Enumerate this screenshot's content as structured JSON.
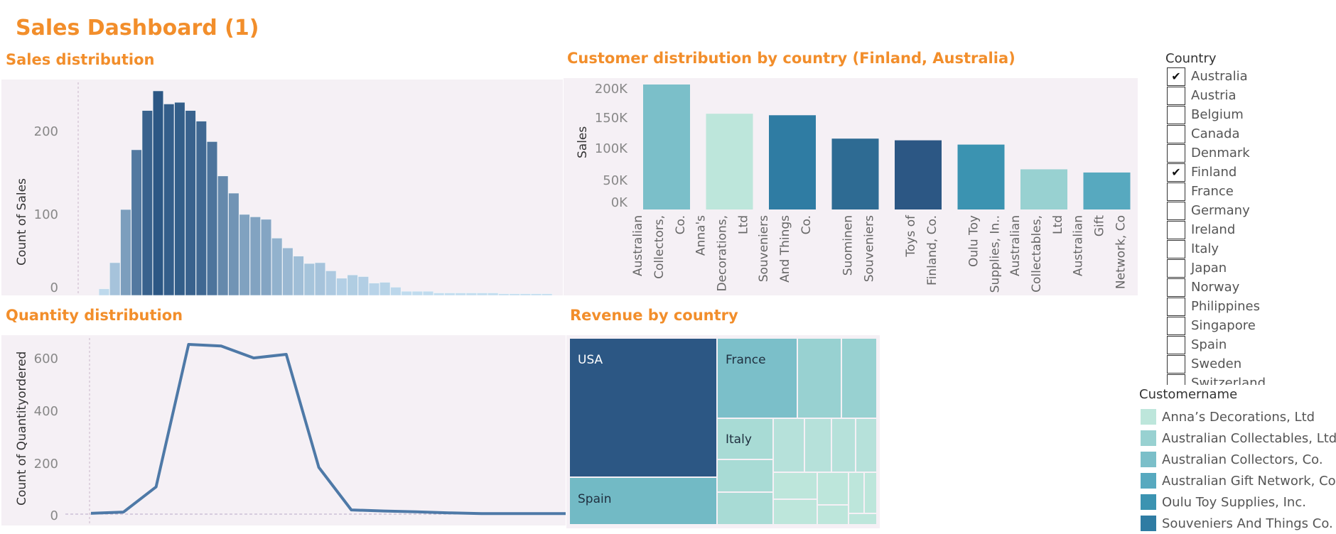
{
  "dashboard": {
    "title": "Sales Dashboard (1)"
  },
  "panels": {
    "sales_distribution": {
      "title": "Sales distribution",
      "ylabel": "Count of Sales",
      "yticks": [
        "200",
        "100",
        "0"
      ]
    },
    "customer_distribution": {
      "title": "Customer distribution by country (Finland, Australia)",
      "ylabel": "Sales",
      "yticks": [
        "200K",
        "150K",
        "100K",
        "50K",
        "0K"
      ]
    },
    "quantity_distribution": {
      "title": "Quantity distribution",
      "ylabel": "Count of Quantityordered",
      "yticks": [
        "600",
        "400",
        "200",
        "0"
      ]
    },
    "revenue_by_country": {
      "title": "Revenue by country",
      "labels": [
        "USA",
        "Spain",
        "France",
        "Italy"
      ]
    }
  },
  "chart_data": [
    {
      "type": "bar",
      "title": "Sales distribution",
      "ylabel": "Count of Sales",
      "ylim": [
        0,
        250
      ],
      "values": [
        0,
        8,
        40,
        105,
        178,
        226,
        250,
        234,
        236,
        226,
        213,
        188,
        146,
        125,
        99,
        96,
        93,
        70,
        58,
        48,
        39,
        40,
        30,
        21,
        25,
        23,
        15,
        16,
        10,
        5,
        5,
        5,
        3,
        3,
        3,
        3,
        3,
        3,
        2,
        2,
        2,
        2,
        2,
        0,
        0,
        0,
        0,
        2,
        0
      ]
    },
    {
      "type": "bar",
      "title": "Customer distribution by country (Finland, Australia)",
      "ylabel": "Sales",
      "ylim": [
        0,
        210000
      ],
      "categories": [
        "Australian Collectors, Co.",
        "Anna's Decorations, Ltd",
        "Souveniers And Things Co.",
        "Suominen Souveniers",
        "Toys of Finland, Co.",
        "Oulu Toy Supplies, In..",
        "Australian Collectables, Ltd",
        "Australian Gift Network, Co"
      ],
      "category_lines": [
        [
          "Australian",
          "Collectors,",
          "Co."
        ],
        [
          "Anna's",
          "Decorations,",
          "Ltd"
        ],
        [
          "Souveniers",
          "And Things",
          "Co."
        ],
        [
          "Suominen",
          "Souveniers"
        ],
        [
          "Toys of",
          "Finland, Co."
        ],
        [
          "Oulu Toy",
          "Supplies, In.."
        ],
        [
          "Australian",
          "Collectables,",
          "Ltd"
        ],
        [
          "Australian",
          "Gift",
          "Network, Co"
        ]
      ],
      "values": [
        200995,
        153996,
        151570,
        113961,
        111250,
        104370,
        64591,
        59469
      ],
      "colors": [
        "#7bbfc9",
        "#bde6db",
        "#2f7ca3",
        "#2e6b93",
        "#2c5784",
        "#3b93b1",
        "#98d1d1",
        "#57a9bf"
      ]
    },
    {
      "type": "line",
      "title": "Quantity distribution",
      "ylabel": "Count of Quantityordered",
      "ylim": [
        -10,
        680
      ],
      "values": [
        3,
        8,
        104,
        649,
        643,
        597,
        611,
        179,
        16,
        12,
        9,
        5,
        2,
        2,
        2,
        2
      ]
    },
    {
      "type": "heatmap",
      "title": "Revenue by country",
      "labels": [
        "USA",
        "Spain",
        "France",
        "Italy"
      ]
    }
  ],
  "country_filter": {
    "title": "Country",
    "items": [
      {
        "label": "Australia",
        "checked": true
      },
      {
        "label": "Austria",
        "checked": false
      },
      {
        "label": "Belgium",
        "checked": false
      },
      {
        "label": "Canada",
        "checked": false
      },
      {
        "label": "Denmark",
        "checked": false
      },
      {
        "label": "Finland",
        "checked": true
      },
      {
        "label": "France",
        "checked": false
      },
      {
        "label": "Germany",
        "checked": false
      },
      {
        "label": "Ireland",
        "checked": false
      },
      {
        "label": "Italy",
        "checked": false
      },
      {
        "label": "Japan",
        "checked": false
      },
      {
        "label": "Norway",
        "checked": false
      },
      {
        "label": "Philippines",
        "checked": false
      },
      {
        "label": "Singapore",
        "checked": false
      },
      {
        "label": "Spain",
        "checked": false
      },
      {
        "label": "Sweden",
        "checked": false
      },
      {
        "label": "Switzerland",
        "checked": false
      }
    ]
  },
  "customer_legend": {
    "title": "Customername",
    "items": [
      {
        "label": "Anna’s Decorations, Ltd",
        "color": "#bde6db"
      },
      {
        "label": "Australian Collectables, Ltd",
        "color": "#98d1d1"
      },
      {
        "label": "Australian Collectors, Co.",
        "color": "#7bbfc9"
      },
      {
        "label": "Australian Gift Network, Co",
        "color": "#57a9bf"
      },
      {
        "label": "Oulu Toy Supplies, Inc.",
        "color": "#3b93b1"
      },
      {
        "label": "Souveniers And Things Co.",
        "color": "#2f7ca3"
      }
    ]
  },
  "colors": {
    "accent": "#f28e2b",
    "panel_bg": "#f5f0f5",
    "line": "#4e79a7"
  }
}
